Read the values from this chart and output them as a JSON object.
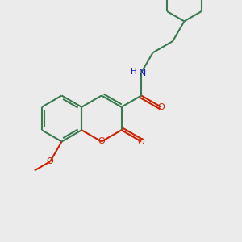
{
  "bg_color": "#ebebeb",
  "bond_color": "#3a7a50",
  "oxygen_color": "#cc2200",
  "nitrogen_color": "#1a1acc",
  "line_width": 1.5,
  "figsize": [
    3.0,
    3.0
  ],
  "dpi": 100,
  "xlim": [
    0,
    10
  ],
  "ylim": [
    0,
    10
  ]
}
